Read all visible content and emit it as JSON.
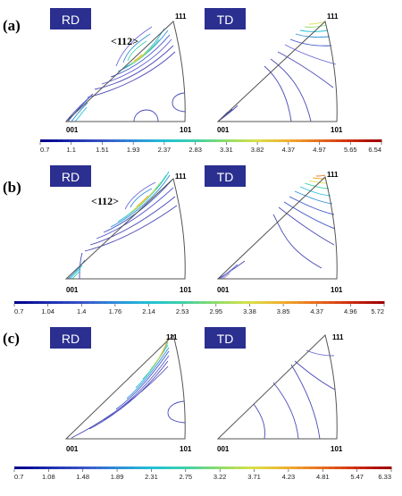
{
  "panels": [
    {
      "label": "(a)",
      "rd": {
        "box": "RD",
        "corners": {
          "c001": "001",
          "c101": "101",
          "c111": "111"
        },
        "annotation": "<112>"
      },
      "td": {
        "box": "TD",
        "corners": {
          "c001": "001",
          "c101": "101",
          "c111": "111"
        }
      },
      "colorbar": [
        "0.7",
        "1.1",
        "1.51",
        "1.93",
        "2.37",
        "2.83",
        "3.31",
        "3.82",
        "4.37",
        "4.97",
        "5.65",
        "6.54"
      ]
    },
    {
      "label": "(b)",
      "rd": {
        "box": "RD",
        "corners": {
          "c001": "001",
          "c101": "101",
          "c111": "111"
        },
        "annotation": "<112>"
      },
      "td": {
        "box": "TD",
        "corners": {
          "c001": "001",
          "c101": "101",
          "c111": "111"
        }
      },
      "colorbar": [
        "0.7",
        "1.04",
        "1.4",
        "1.76",
        "2.14",
        "2.53",
        "2.95",
        "3.38",
        "3.85",
        "4.37",
        "4.96",
        "5.72"
      ]
    },
    {
      "label": "(c)",
      "rd": {
        "box": "RD",
        "corners": {
          "c001": "001",
          "c101": "101",
          "c111": "111"
        }
      },
      "td": {
        "box": "TD",
        "corners": {
          "c001": "001",
          "c101": "101",
          "c111": "111"
        }
      },
      "colorbar": [
        "0.7",
        "1.08",
        "1.48",
        "1.89",
        "2.31",
        "2.75",
        "3.22",
        "3.71",
        "4.23",
        "4.81",
        "5.47",
        "6.33"
      ]
    }
  ],
  "colors": {
    "label_box": "#2b2f8f",
    "triangle": "#555555",
    "colormap": [
      "#00008b",
      "#1f2fb0",
      "#3a55c8",
      "#2f8fd8",
      "#22c0d6",
      "#3fd0a8",
      "#8fdc6a",
      "#d8e04a",
      "#f0b030",
      "#e87020",
      "#d03010",
      "#a00000"
    ]
  }
}
